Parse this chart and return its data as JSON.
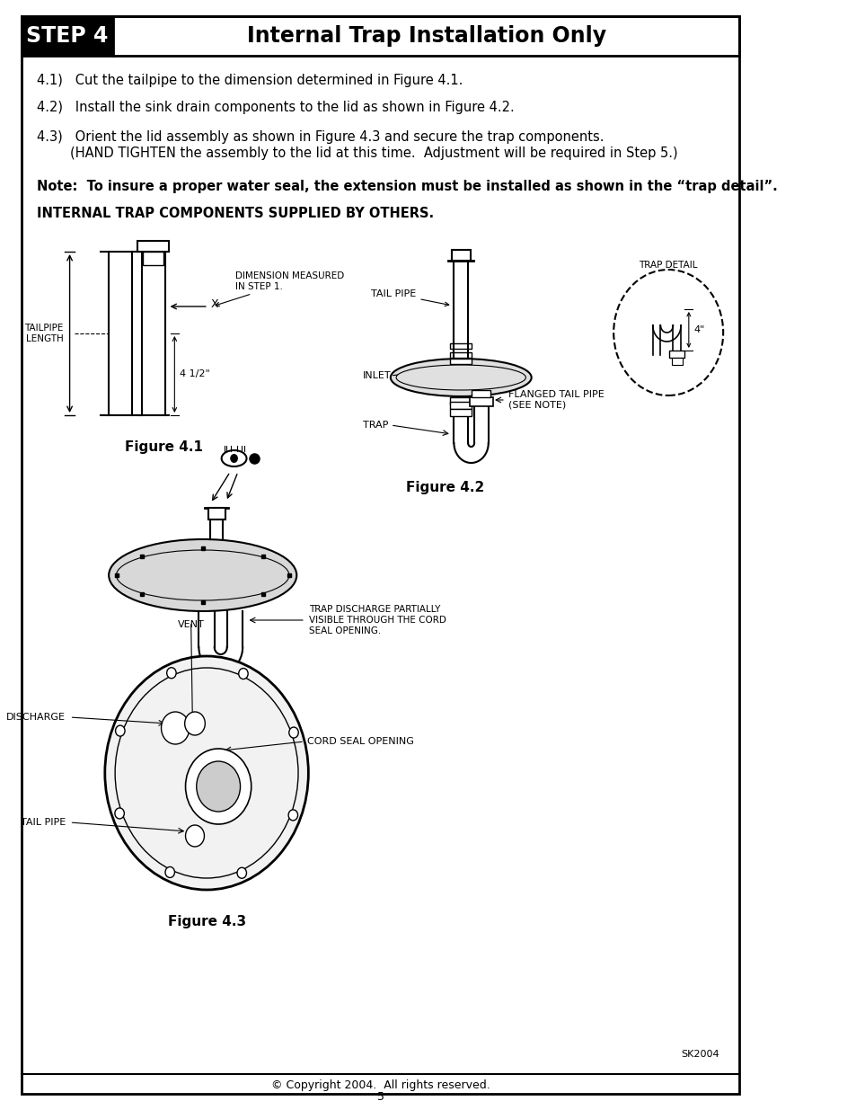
{
  "title_step": "STEP 4",
  "title_main": "Internal Trap Installation Only",
  "step_bg": "#000000",
  "step_text_color": "#ffffff",
  "title_text_color": "#000000",
  "border_color": "#000000",
  "text_color": "#000000",
  "body_bg": "#ffffff",
  "item_41": "4.1)   Cut the tailpipe to the dimension determined in Figure 4.1.",
  "item_42": "4.2)   Install the sink drain components to the lid as shown in Figure 4.2.",
  "item_43_line1": "4.3)   Orient the lid assembly as shown in Figure 4.3 and secure the trap components.",
  "item_43_line2": "        (HAND TIGHTEN the assembly to the lid at this time.  Adjustment will be required in Step 5.)",
  "note_line": "Note:  To insure a proper water seal, the extension must be installed as shown in the “trap detail”.",
  "internal_trap": "INTERNAL TRAP COMPONENTS SUPPLIED BY OTHERS.",
  "fig41_label": "Figure 4.1",
  "fig42_label": "Figure 4.2",
  "fig43_label": "Figure 4.3",
  "copyright": "© Copyright 2004.  All rights reserved.",
  "page_num": "5",
  "sk_code": "SK2004",
  "page_width": 9.54,
  "page_height": 12.35
}
